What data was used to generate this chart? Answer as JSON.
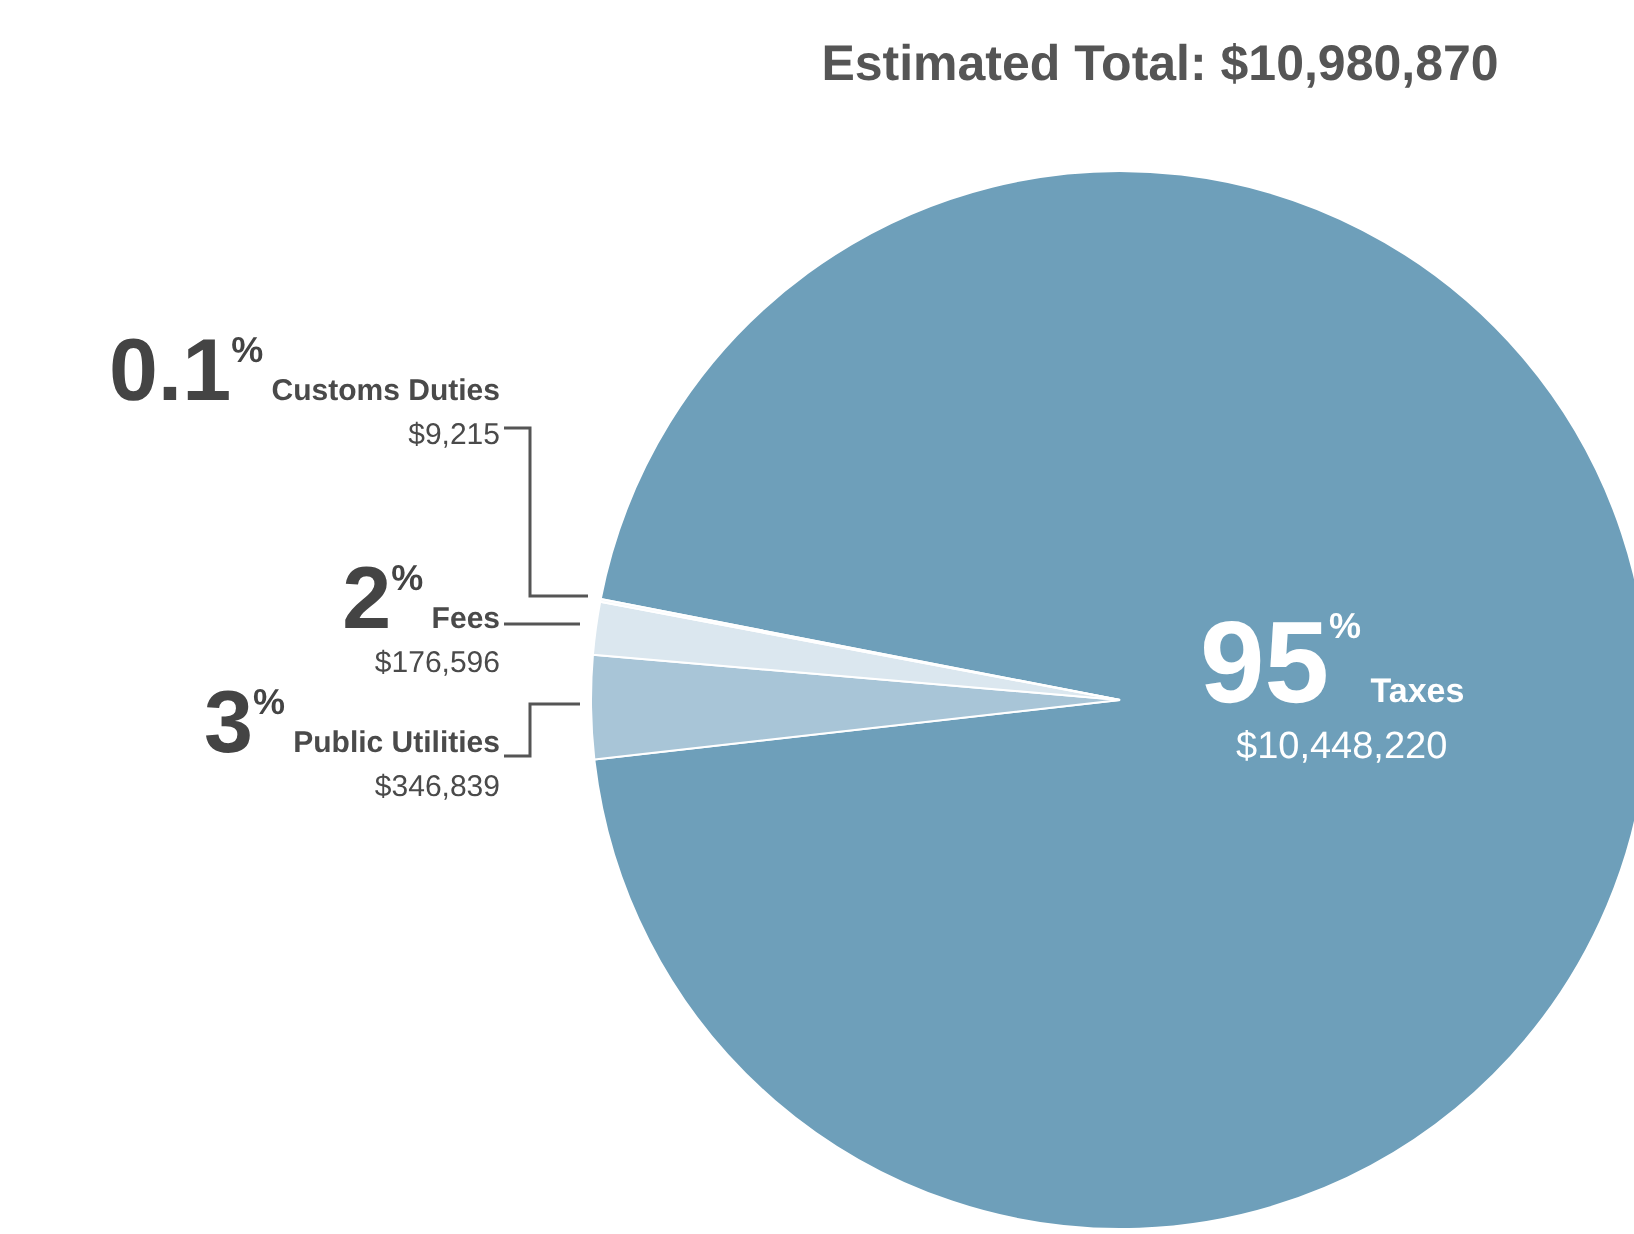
{
  "chart_data": {
    "type": "pie",
    "title": "Estimated Total: $10,980,870",
    "categories": [
      "Taxes",
      "Public Utilities",
      "Fees",
      "Customs Duties"
    ],
    "values": [
      10448220,
      346839,
      176596,
      9215
    ],
    "colors": [
      "#6e9fba",
      "#a8c5d7",
      "#dbe7ef",
      "#f3f7fa"
    ],
    "value_labels": [
      "$10,448,220",
      "$346,839",
      "$176,596",
      "$9,215"
    ],
    "annotations": [
      "95$^{%}$",
      "3$^{%}$",
      "2$^{%}$",
      "0.1$^{%}$"
    ],
    "legend": false
  }
}
